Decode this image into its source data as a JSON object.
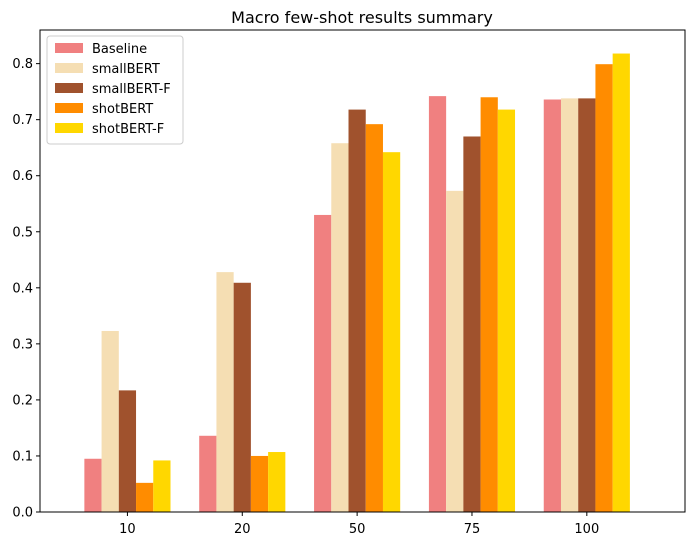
{
  "chart_data": {
    "type": "bar",
    "title": "Macro few-shot results summary",
    "xlabel": "",
    "ylabel": "",
    "categories": [
      "10",
      "20",
      "50",
      "75",
      "100"
    ],
    "ylim": [
      0,
      0.86
    ],
    "yticks": [
      "0.0",
      "0.1",
      "0.2",
      "0.3",
      "0.4",
      "0.5",
      "0.6",
      "0.7",
      "0.8"
    ],
    "grid": false,
    "legend_position": "top-left",
    "series": [
      {
        "name": "Baseline",
        "color": "#f08080",
        "values": [
          0.095,
          0.136,
          0.53,
          0.742,
          0.736
        ]
      },
      {
        "name": "smallBERT",
        "color": "#f5deb3",
        "values": [
          0.323,
          0.428,
          0.658,
          0.573,
          0.738
        ]
      },
      {
        "name": "smallBERT-F",
        "color": "#a0522d",
        "values": [
          0.217,
          0.409,
          0.718,
          0.67,
          0.738
        ]
      },
      {
        "name": "shotBERT",
        "color": "#ff8c00",
        "values": [
          0.052,
          0.1,
          0.692,
          0.74,
          0.799
        ]
      },
      {
        "name": "shotBERT-F",
        "color": "#ffd700",
        "values": [
          0.092,
          0.107,
          0.642,
          0.718,
          0.818
        ]
      }
    ]
  }
}
